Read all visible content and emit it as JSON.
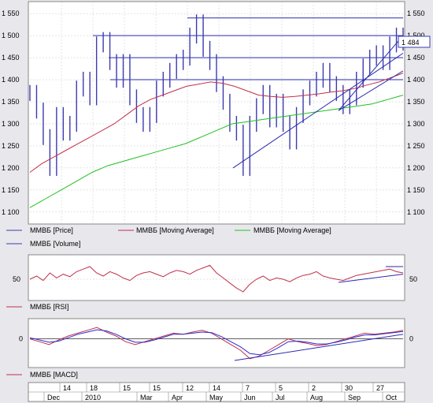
{
  "colors": {
    "price": "#3b3bb0",
    "ma_short": "#c0304a",
    "ma_long": "#20c020",
    "rsi": "#c0304a",
    "macd": "#c0304a",
    "signal": "#2a2ad0",
    "trend": "#2a2ab0",
    "bg": "#ffffff",
    "panel_bg": "#e8e8ec",
    "grid": "#c8c8d0"
  },
  "chart_data": [
    {
      "type": "line",
      "panel": "price",
      "ylim": [
        1080,
        1570
      ],
      "y_ticks": [
        "1 550",
        "1 500",
        "1 450",
        "1 400",
        "1 350",
        "1 300",
        "1 250",
        "1 200",
        "1 150",
        "1 100"
      ],
      "last_value_label": "1 484",
      "legend": [
        "ММВБ [Price]",
        "ММВБ [Moving Average]",
        "ММВБ [Moving Average]"
      ],
      "series": [
        {
          "name": "ММВБ [Price]",
          "values": [
            1370,
            1330,
            1270,
            1200,
            1320,
            1280,
            1300,
            1380,
            1400,
            1360,
            1480,
            1490,
            1440,
            1400,
            1440,
            1360,
            1320,
            1300,
            1320,
            1380,
            1400,
            1420,
            1440,
            1450,
            1500,
            1530,
            1470,
            1440,
            1390,
            1350,
            1300,
            1280,
            1200,
            1300,
            1340,
            1370,
            1310,
            1350,
            1300,
            1260,
            1320,
            1360,
            1380,
            1400,
            1420,
            1390,
            1370,
            1340,
            1360,
            1400,
            1430,
            1450,
            1460,
            1440,
            1480,
            1500,
            1484
          ]
        },
        {
          "name": "ММВБ [Moving Average]",
          "values": [
            1190,
            1210,
            1225,
            1240,
            1255,
            1270,
            1285,
            1300,
            1320,
            1340,
            1355,
            1365,
            1375,
            1385,
            1390,
            1395,
            1392,
            1385,
            1375,
            1365,
            1362,
            1360,
            1362,
            1365,
            1368,
            1372,
            1375,
            1380,
            1388,
            1395,
            1405,
            1415
          ]
        },
        {
          "name": "ММВБ [Moving Average]",
          "values": [
            1110,
            1130,
            1150,
            1170,
            1190,
            1205,
            1215,
            1225,
            1235,
            1245,
            1255,
            1270,
            1285,
            1300,
            1305,
            1310,
            1315,
            1320,
            1325,
            1330,
            1335,
            1340,
            1345,
            1355,
            1365
          ]
        }
      ],
      "horizontal_levels": [
        1540,
        1500,
        1450,
        1400
      ]
    },
    {
      "type": "bar",
      "panel": "volume",
      "legend": [
        "ММВБ [Volume]"
      ]
    },
    {
      "type": "line",
      "panel": "rsi",
      "ylim": [
        20,
        85
      ],
      "y_ticks": [
        "50"
      ],
      "legend": [
        "ММВБ [RSI]"
      ],
      "series": [
        {
          "name": "ММВБ [RSI]",
          "values": [
            50,
            55,
            48,
            60,
            52,
            58,
            54,
            62,
            66,
            70,
            60,
            55,
            62,
            58,
            52,
            48,
            56,
            60,
            62,
            58,
            54,
            60,
            64,
            62,
            58,
            64,
            68,
            72,
            60,
            52,
            44,
            36,
            30,
            42,
            50,
            55,
            48,
            52,
            50,
            46,
            52,
            56,
            58,
            62,
            55,
            52,
            50,
            48,
            52,
            56,
            58,
            60,
            62,
            64,
            66,
            62,
            60
          ]
        }
      ]
    },
    {
      "type": "line",
      "panel": "macd",
      "ylim": [
        -45,
        30
      ],
      "y_ticks": [
        "0"
      ],
      "legend": [
        "ММВБ [MACD]"
      ],
      "series": [
        {
          "name": "ММВБ [MACD]",
          "values": [
            0,
            -5,
            -10,
            -2,
            5,
            10,
            15,
            20,
            12,
            5,
            -5,
            -10,
            -5,
            0,
            5,
            10,
            8,
            12,
            15,
            10,
            0,
            -10,
            -20,
            -35,
            -30,
            -20,
            -10,
            0,
            -5,
            -8,
            -12,
            -10,
            -5,
            0,
            5,
            10,
            8,
            10,
            12,
            15
          ]
        },
        {
          "name": "signal",
          "values": [
            2,
            -2,
            -6,
            -4,
            2,
            8,
            12,
            16,
            14,
            8,
            0,
            -6,
            -6,
            -2,
            3,
            8,
            8,
            10,
            12,
            11,
            4,
            -5,
            -14,
            -26,
            -28,
            -24,
            -15,
            -5,
            -4,
            -6,
            -9,
            -9,
            -6,
            -2,
            3,
            7,
            7,
            9,
            11,
            13
          ]
        }
      ]
    }
  ],
  "x_axis": {
    "day_labels": [
      "14",
      "18",
      "15",
      "15",
      "12",
      "14",
      "7",
      "5",
      "2",
      "30",
      "27"
    ],
    "month_labels": [
      "Dec",
      "2010",
      "Mar",
      "Apr",
      "May",
      "Jun",
      "Jul",
      "Aug",
      "Sep",
      "Oct"
    ]
  }
}
